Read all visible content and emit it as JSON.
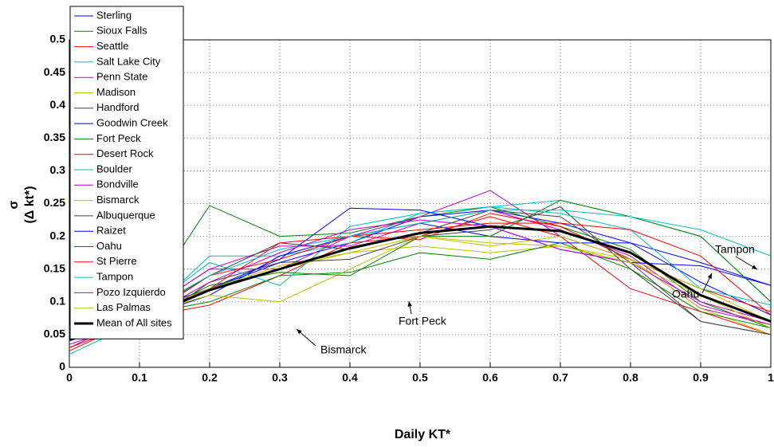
{
  "chart_data": {
    "type": "line",
    "xlabel": "Daily KT*",
    "ylabel": [
      "σ",
      "(Δ kt*)"
    ],
    "x": [
      0,
      0.1,
      0.2,
      0.3,
      0.4,
      0.5,
      0.6,
      0.7,
      0.8,
      0.9,
      1
    ],
    "xlim": [
      0,
      1
    ],
    "xticks": [
      0,
      0.1,
      0.2,
      0.3,
      0.4,
      0.5,
      0.6,
      0.7,
      0.8,
      0.9,
      1
    ],
    "ylim": [
      0,
      0.5
    ],
    "yticks": [
      0,
      0.05,
      0.1,
      0.15,
      0.2,
      0.25,
      0.3,
      0.35,
      0.4,
      0.45,
      0.5
    ],
    "grid": true,
    "legend": "upper-left",
    "series": [
      {
        "name": "Sterling",
        "color": "#0000ff",
        "values": [
          0.05,
          0.08,
          0.12,
          0.16,
          0.19,
          0.23,
          0.24,
          0.22,
          0.19,
          0.16,
          0.125
        ]
      },
      {
        "name": "Sioux Falls",
        "color": "#008000",
        "values": [
          0.045,
          0.085,
          0.247,
          0.2,
          0.205,
          0.23,
          0.245,
          0.215,
          0.18,
          0.1,
          0.06
        ]
      },
      {
        "name": "Seattle",
        "color": "#ff0000",
        "values": [
          0.025,
          0.075,
          0.095,
          0.14,
          0.19,
          0.2,
          0.23,
          0.2,
          0.12,
          0.085,
          0.05
        ]
      },
      {
        "name": "Salt Lake City",
        "color": "#00bfbf",
        "values": [
          0.02,
          0.07,
          0.17,
          0.17,
          0.19,
          0.235,
          0.245,
          0.255,
          0.23,
          0.2,
          0.1
        ]
      },
      {
        "name": "Penn State",
        "color": "#bf00bf",
        "values": [
          0.03,
          0.08,
          0.15,
          0.15,
          0.2,
          0.23,
          0.27,
          0.2,
          0.165,
          0.09,
          0.065
        ]
      },
      {
        "name": "Madison",
        "color": "#bfbf00",
        "values": [
          0.062,
          0.075,
          0.12,
          0.15,
          0.175,
          0.185,
          0.175,
          0.185,
          0.165,
          0.09,
          0.05
        ]
      },
      {
        "name": "Handford",
        "color": "#404040",
        "values": [
          null,
          0.055,
          0.13,
          0.16,
          0.165,
          0.2,
          0.21,
          0.245,
          0.15,
          0.07,
          0.05
        ]
      },
      {
        "name": "Goodwin Creek",
        "color": "#0000ff",
        "values": [
          0.045,
          0.075,
          0.11,
          0.17,
          0.2,
          0.22,
          0.2,
          0.19,
          0.19,
          0.13,
          0.08
        ]
      },
      {
        "name": "Fort Peck",
        "color": "#008000",
        "values": [
          0.05,
          0.08,
          0.1,
          0.14,
          0.145,
          0.175,
          0.165,
          0.19,
          0.15,
          0.085,
          0.06
        ]
      },
      {
        "name": "Desert Rock",
        "color": "#ff0000",
        "values": [
          0.03,
          0.07,
          0.14,
          0.165,
          0.2,
          0.195,
          0.235,
          0.215,
          0.165,
          0.12,
          0.085
        ]
      },
      {
        "name": "Boulder",
        "color": "#00bfbf",
        "values": [
          0.04,
          0.08,
          0.16,
          0.125,
          0.215,
          0.235,
          0.245,
          0.235,
          0.21,
          0.12,
          0.095
        ]
      },
      {
        "name": "Bondville",
        "color": "#bf00bf",
        "values": [
          0.04,
          0.08,
          0.15,
          0.185,
          0.185,
          0.22,
          0.24,
          0.21,
          0.17,
          0.095,
          0.065
        ]
      },
      {
        "name": "Bismarck",
        "color": "#bfbf00",
        "values": [
          0.055,
          0.08,
          0.11,
          0.1,
          0.15,
          0.2,
          0.185,
          0.2,
          0.165,
          0.12,
          0.07
        ]
      },
      {
        "name": "Albuquerque",
        "color": "#404040",
        "values": [
          0.05,
          0.075,
          0.14,
          0.19,
          0.18,
          0.205,
          0.24,
          0.23,
          0.16,
          0.07,
          0.05
        ]
      },
      {
        "name": "Raizet",
        "color": "#0000ff",
        "values": [
          0.045,
          0.085,
          0.12,
          0.165,
          0.243,
          0.24,
          0.215,
          0.18,
          0.16,
          0.155,
          0.125
        ]
      },
      {
        "name": "Oahu",
        "color": "#008000",
        "values": [
          0.05,
          0.07,
          0.125,
          0.145,
          0.14,
          0.2,
          0.2,
          0.255,
          0.23,
          0.2,
          0.1
        ]
      },
      {
        "name": "St Pierre",
        "color": "#ff0000",
        "values": [
          0.045,
          0.08,
          0.12,
          0.19,
          0.2,
          0.21,
          0.22,
          0.22,
          0.21,
          0.17,
          0.08
        ]
      },
      {
        "name": "Tampon",
        "color": "#00bfbf",
        "values": [
          0.04,
          0.08,
          0.14,
          0.18,
          0.2,
          0.22,
          0.24,
          0.24,
          0.23,
          0.21,
          0.17
        ]
      },
      {
        "name": "Pozo Izquierdo",
        "color": "#bf00bf",
        "values": [
          0.035,
          0.07,
          0.13,
          0.175,
          0.21,
          0.225,
          0.215,
          0.18,
          0.16,
          0.1,
          0.07
        ]
      },
      {
        "name": "Las Palmas",
        "color": "#bfbf00",
        "values": [
          0.05,
          0.08,
          0.12,
          0.155,
          0.175,
          0.2,
          0.19,
          0.185,
          0.16,
          0.11,
          0.06
        ]
      },
      {
        "name": "Mean of All sites",
        "color": "#000000",
        "values": [
          0.042,
          0.073,
          0.118,
          0.15,
          0.182,
          0.205,
          0.215,
          0.208,
          0.175,
          0.11,
          0.07
        ]
      }
    ],
    "annotations": [
      "Bismarck",
      "Fort Peck",
      "Oahu",
      "Tampon"
    ]
  }
}
